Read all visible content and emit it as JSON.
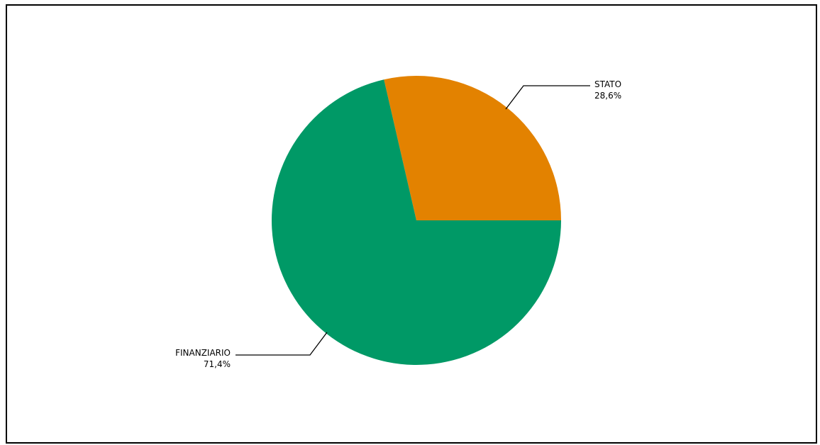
{
  "chart_data": {
    "type": "pie",
    "title": "",
    "slices": [
      {
        "label": "STATO",
        "value": 28.6,
        "value_label": "28,6%",
        "color": "#E38200"
      },
      {
        "label": "FINANZIARIO",
        "value": 71.4,
        "value_label": "71,4%",
        "color": "#009966"
      }
    ],
    "legend": "none"
  }
}
